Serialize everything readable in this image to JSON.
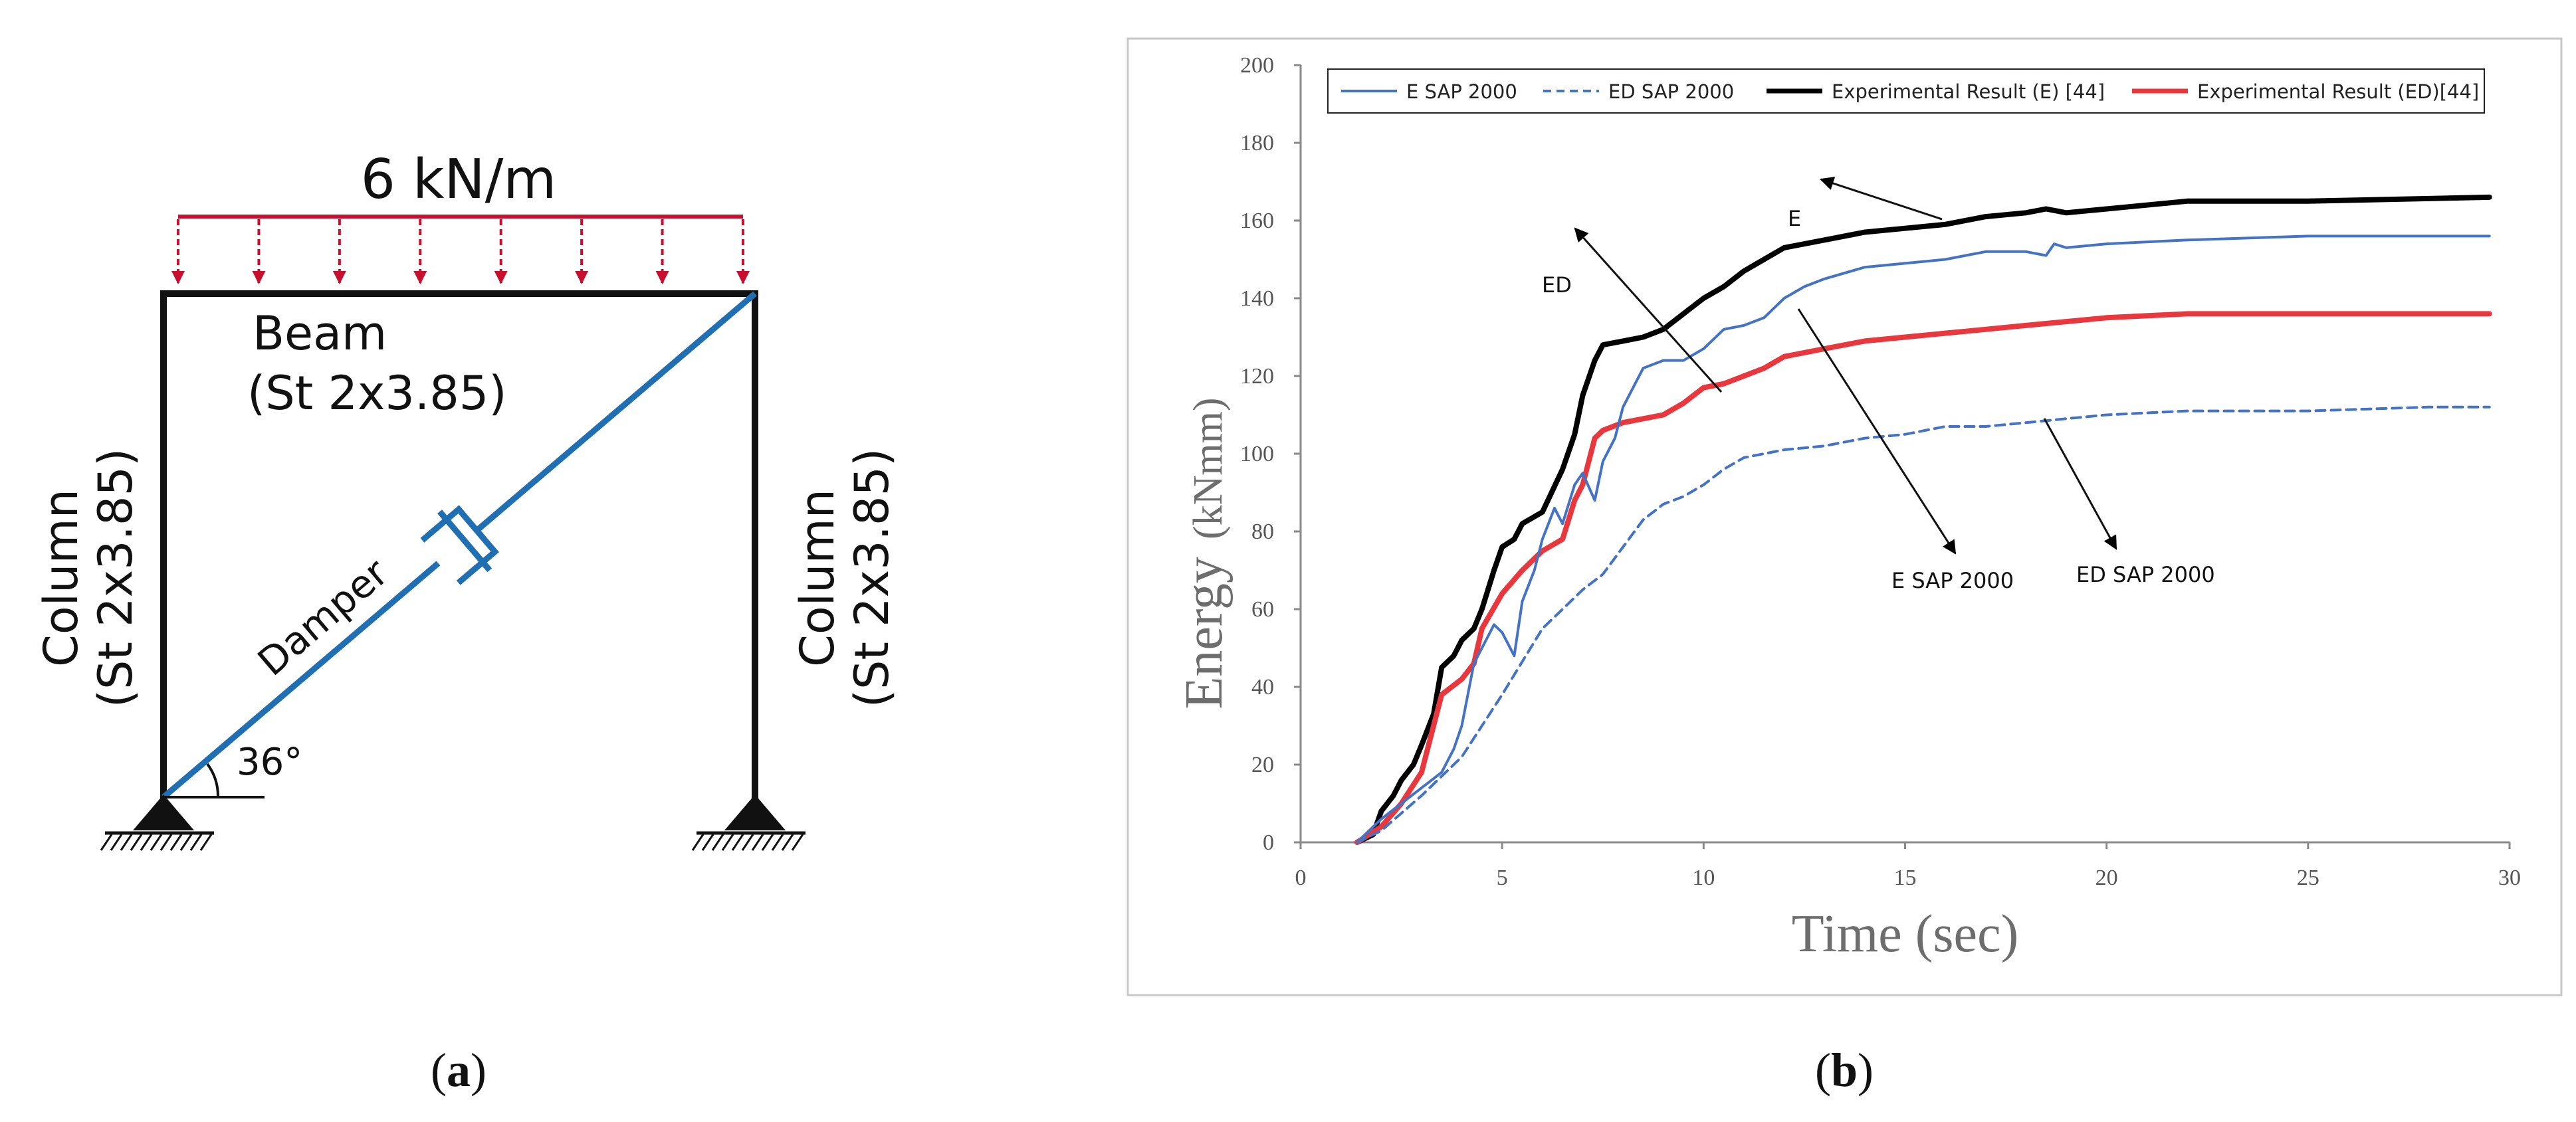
{
  "panel_a": {
    "load_label": "6 kN/m",
    "beam_label": "Beam",
    "beam_section": "(St 2x3.85)",
    "left_column_label": "Column",
    "left_column_section": "(St 2x3.85)",
    "right_column_label": "Column",
    "right_column_section": "(St 2x3.85)",
    "damper_label": "Damper",
    "angle_label": "36°",
    "caption_open": "(",
    "caption_letter": "a",
    "caption_close": ")"
  },
  "panel_b": {
    "caption_open": "(",
    "caption_letter": "b",
    "caption_close": ")",
    "annotations": {
      "e": "E",
      "ed": "ED",
      "e_sap": "E SAP 2000",
      "ed_sap": "ED SAP 2000"
    }
  },
  "colors": {
    "load": "#c8102e",
    "damper": "#1f6fb2",
    "frame": "#111111",
    "e_sap": "#4472c4",
    "ed_sap": "#4472c4",
    "exp_e": "#000000",
    "exp_ed": "#e8383d"
  },
  "chart_data": {
    "type": "line",
    "title": "",
    "xlabel": "Time (sec)",
    "ylabel_part1": "Energy",
    "ylabel_part2": "(kNmm)",
    "xlim": [
      0,
      30
    ],
    "ylim": [
      0,
      200
    ],
    "xticks": [
      0,
      5,
      10,
      15,
      20,
      25,
      30
    ],
    "yticks": [
      0,
      20,
      40,
      60,
      80,
      100,
      120,
      140,
      160,
      180,
      200
    ],
    "grid": false,
    "legend_position": "top",
    "series": [
      {
        "name": "E SAP 2000",
        "style": "solid",
        "x": [
          1.4,
          2.0,
          2.5,
          3.0,
          3.5,
          3.8,
          4.0,
          4.3,
          4.5,
          4.8,
          5.0,
          5.3,
          5.5,
          5.8,
          6.0,
          6.3,
          6.5,
          6.8,
          7.0,
          7.3,
          7.5,
          7.8,
          8.0,
          8.3,
          8.5,
          9.0,
          9.5,
          10.0,
          10.5,
          11.0,
          11.5,
          12.0,
          12.5,
          13.0,
          14.0,
          15.0,
          16.0,
          17.0,
          18.0,
          18.5,
          18.7,
          19.0,
          20.0,
          22.0,
          25.0,
          28.0,
          29.5
        ],
        "y": [
          0,
          6,
          10,
          14,
          18,
          24,
          30,
          46,
          50,
          56,
          54,
          48,
          62,
          70,
          78,
          86,
          82,
          92,
          95,
          88,
          98,
          104,
          112,
          118,
          122,
          124,
          124,
          127,
          132,
          133,
          135,
          140,
          143,
          145,
          148,
          149,
          150,
          152,
          152,
          151,
          154,
          153,
          154,
          155,
          156,
          156,
          156
        ]
      },
      {
        "name": "ED SAP 2000",
        "style": "dashed",
        "x": [
          1.4,
          2.0,
          3.0,
          4.0,
          5.0,
          6.0,
          7.0,
          7.5,
          8.0,
          8.5,
          9.0,
          9.5,
          10.0,
          10.5,
          11.0,
          12.0,
          13.0,
          14.0,
          15.0,
          16.0,
          17.0,
          18.0,
          19.0,
          20.0,
          22.0,
          25.0,
          28.0,
          29.5
        ],
        "y": [
          0,
          3,
          12,
          22,
          38,
          55,
          65,
          69,
          76,
          83,
          87,
          89,
          92,
          96,
          99,
          101,
          102,
          104,
          105,
          107,
          107,
          108,
          109,
          110,
          111,
          111,
          112,
          112
        ]
      },
      {
        "name": "Experimental Result (E) [44]",
        "style": "solid",
        "x": [
          1.4,
          1.8,
          2.0,
          2.3,
          2.5,
          2.8,
          3.0,
          3.3,
          3.5,
          3.8,
          4.0,
          4.3,
          4.5,
          4.8,
          5.0,
          5.3,
          5.5,
          6.0,
          6.5,
          6.8,
          7.0,
          7.3,
          7.5,
          8.0,
          8.5,
          9.0,
          9.5,
          10.0,
          10.5,
          11.0,
          11.5,
          12.0,
          13.0,
          14.0,
          15.0,
          16.0,
          17.0,
          18.0,
          18.5,
          19.0,
          20.0,
          22.0,
          25.0,
          29.5
        ],
        "y": [
          0,
          2,
          8,
          12,
          16,
          20,
          25,
          33,
          45,
          48,
          52,
          55,
          60,
          70,
          76,
          78,
          82,
          85,
          96,
          105,
          115,
          124,
          128,
          129,
          130,
          132,
          136,
          140,
          143,
          147,
          150,
          153,
          155,
          157,
          158,
          159,
          161,
          162,
          163,
          162,
          163,
          165,
          165,
          166
        ]
      },
      {
        "name": "Experimental Result (ED)[44]",
        "style": "solid",
        "x": [
          1.4,
          2.0,
          2.5,
          3.0,
          3.5,
          4.0,
          4.3,
          4.5,
          5.0,
          5.5,
          6.0,
          6.5,
          6.8,
          7.0,
          7.3,
          7.5,
          8.0,
          8.5,
          9.0,
          9.5,
          10.0,
          10.5,
          11.0,
          11.5,
          12.0,
          13.0,
          14.0,
          15.0,
          16.0,
          17.0,
          18.0,
          19.0,
          20.0,
          22.0,
          25.0,
          29.5
        ],
        "y": [
          0,
          4,
          10,
          18,
          38,
          42,
          46,
          55,
          64,
          70,
          75,
          78,
          88,
          92,
          104,
          106,
          108,
          109,
          110,
          113,
          117,
          118,
          120,
          122,
          125,
          127,
          129,
          130,
          131,
          132,
          133,
          134,
          135,
          136,
          136,
          136
        ]
      }
    ]
  }
}
